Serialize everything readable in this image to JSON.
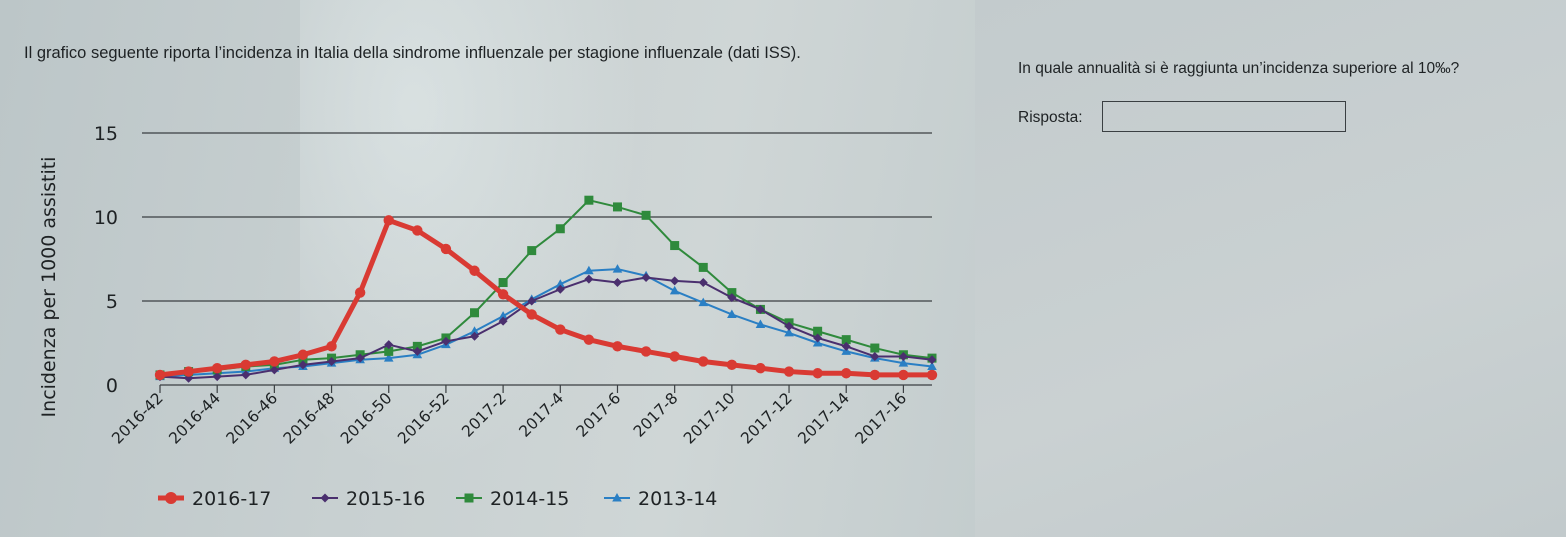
{
  "question": {
    "text": "Il grafico seguente riporta l’incidenza in Italia della sindrome influenzale per stagione influenzale (dati ISS).",
    "side_question": "In quale annualità si è raggiunta un’incidenza superiore al 10‰?",
    "answer_label": "Risposta:",
    "answer_value": ""
  },
  "colors": {
    "2016-17": "#d93a33",
    "2015-16": "#4a2f6e",
    "2014-15": "#2f8a3c",
    "2013-14": "#2a7fc4",
    "gridline": "#3b3f42",
    "text": "#1e2224"
  },
  "chart_data": {
    "type": "line",
    "ylabel": "Incidenza per 1000 assistiti",
    "ylim": [
      0,
      15
    ],
    "yticks": [
      0,
      5,
      10,
      15
    ],
    "grid": true,
    "legend_position": "bottom",
    "categories": [
      "2016-42",
      "2016-43",
      "2016-44",
      "2016-45",
      "2016-46",
      "2016-47",
      "2016-48",
      "2016-49",
      "2016-50",
      "2016-51",
      "2016-52",
      "2017-1",
      "2017-2",
      "2017-3",
      "2017-4",
      "2017-5",
      "2017-6",
      "2017-7",
      "2017-8",
      "2017-9",
      "2017-10",
      "2017-11",
      "2017-12",
      "2017-13",
      "2017-14",
      "2017-15",
      "2017-16",
      "2017-17"
    ],
    "tick_labels": [
      "2016-42",
      "2016-44",
      "2016-46",
      "2016-48",
      "2016-50",
      "2016-52",
      "2017-2",
      "2017-4",
      "2017-6",
      "2017-8",
      "2017-10",
      "2017-12",
      "2017-14",
      "2017-16"
    ],
    "series": [
      {
        "name": "2016-17",
        "marker": "circle",
        "values": [
          0.6,
          0.8,
          1.0,
          1.2,
          1.4,
          1.8,
          2.3,
          5.5,
          9.8,
          9.2,
          8.1,
          6.8,
          5.4,
          4.2,
          3.3,
          2.7,
          2.3,
          2.0,
          1.7,
          1.4,
          1.2,
          1.0,
          0.8,
          0.7,
          0.7,
          0.6,
          0.6,
          0.6
        ]
      },
      {
        "name": "2015-16",
        "marker": "diamond",
        "values": [
          0.5,
          0.4,
          0.5,
          0.6,
          0.9,
          1.2,
          1.4,
          1.6,
          2.4,
          2.0,
          2.6,
          2.9,
          3.8,
          5.0,
          5.7,
          6.3,
          6.1,
          6.4,
          6.2,
          6.1,
          5.2,
          4.5,
          3.5,
          2.8,
          2.3,
          1.7,
          1.7,
          1.5
        ]
      },
      {
        "name": "2014-15",
        "marker": "square",
        "values": [
          0.6,
          0.8,
          0.9,
          1.1,
          1.2,
          1.5,
          1.6,
          1.8,
          2.0,
          2.3,
          2.8,
          4.3,
          6.1,
          8.0,
          9.3,
          11.0,
          10.6,
          10.1,
          8.3,
          7.0,
          5.5,
          4.5,
          3.7,
          3.2,
          2.7,
          2.2,
          1.8,
          1.6
        ]
      },
      {
        "name": "2013-14",
        "marker": "triangle",
        "values": [
          0.5,
          0.6,
          0.7,
          0.8,
          1.0,
          1.1,
          1.3,
          1.5,
          1.6,
          1.8,
          2.4,
          3.2,
          4.1,
          5.1,
          6.0,
          6.8,
          6.9,
          6.5,
          5.6,
          4.9,
          4.2,
          3.6,
          3.1,
          2.5,
          2.0,
          1.6,
          1.3,
          1.1
        ]
      }
    ]
  }
}
